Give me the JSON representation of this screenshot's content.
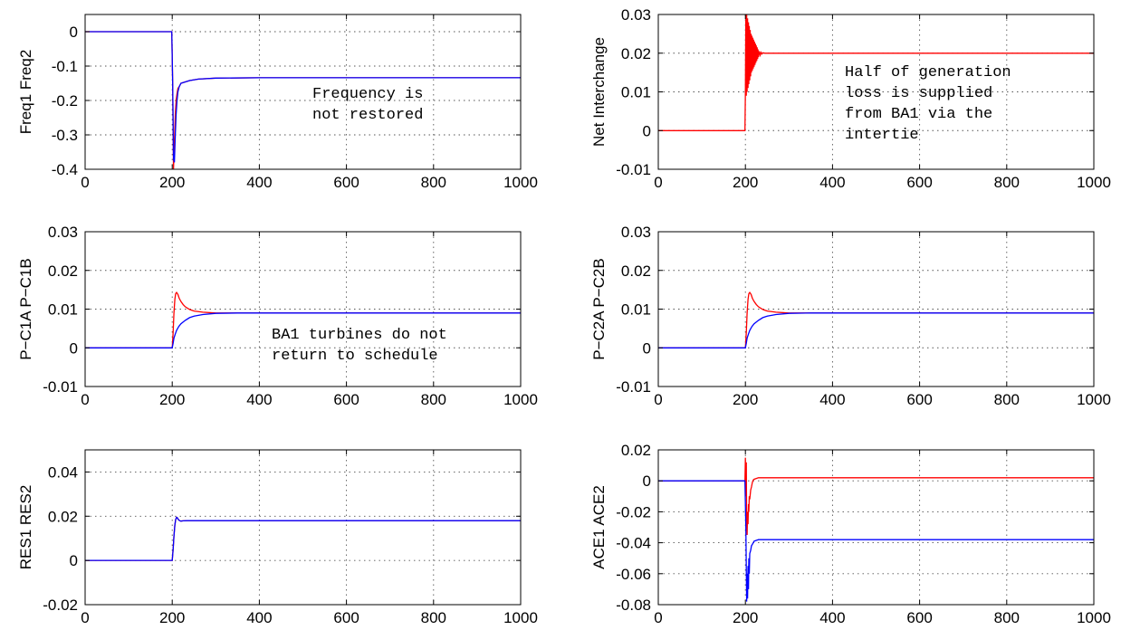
{
  "chart_data": [
    {
      "type": "line",
      "ylabel": "Freq1  Freq2",
      "xlim": [
        0,
        1000
      ],
      "ylim": [
        -0.4,
        0.05
      ],
      "xticks": [
        0,
        200,
        400,
        600,
        800,
        1000
      ],
      "yticks": [
        -0.4,
        -0.3,
        -0.2,
        -0.1,
        0
      ],
      "ytick_labels": [
        "-0.4",
        "-0.3",
        "-0.2",
        "-0.1",
        "0"
      ],
      "grid": true,
      "annotation": [
        "Frequency is",
        "not restored"
      ],
      "series": [
        {
          "color": "#ff0000",
          "x": [
            0,
            199,
            201,
            203,
            205,
            207,
            209,
            211,
            213,
            216,
            220,
            225,
            230,
            240,
            260,
            300,
            400,
            600,
            1000
          ],
          "y": [
            0,
            0,
            -0.15,
            -0.4,
            -0.32,
            -0.24,
            -0.2,
            -0.18,
            -0.165,
            -0.16,
            -0.15,
            -0.148,
            -0.146,
            -0.142,
            -0.138,
            -0.135,
            -0.134,
            -0.134,
            -0.134
          ]
        },
        {
          "color": "#0000ff",
          "x": [
            0,
            199,
            201,
            203,
            205,
            207,
            209,
            211,
            213,
            216,
            220,
            225,
            230,
            240,
            260,
            300,
            400,
            600,
            1000
          ],
          "y": [
            0,
            0,
            -0.15,
            -0.37,
            -0.38,
            -0.3,
            -0.24,
            -0.2,
            -0.175,
            -0.16,
            -0.15,
            -0.148,
            -0.146,
            -0.142,
            -0.138,
            -0.135,
            -0.134,
            -0.134,
            -0.134
          ]
        }
      ]
    },
    {
      "type": "line",
      "ylabel": "Net Interchange",
      "xlim": [
        0,
        1000
      ],
      "ylim": [
        -0.01,
        0.03
      ],
      "xticks": [
        0,
        200,
        400,
        600,
        800,
        1000
      ],
      "yticks": [
        -0.01,
        0,
        0.01,
        0.02,
        0.03
      ],
      "ytick_labels": [
        "-0.01",
        "0",
        "0.01",
        "0.02",
        "0.03"
      ],
      "grid": true,
      "annotation": [
        "Half of generation",
        "loss is supplied",
        "from BA1 via the",
        "intertie"
      ],
      "series": [
        {
          "color": "#ff0000",
          "x": [
            0,
            199,
            200,
            201,
            202,
            203,
            204,
            205,
            206,
            207,
            208,
            209,
            210,
            211,
            212,
            213,
            214,
            215,
            216,
            217,
            218,
            219,
            220,
            221,
            222,
            223,
            224,
            225,
            226,
            227,
            228,
            229,
            230,
            232,
            234,
            236,
            238,
            240,
            245,
            250,
            260,
            300,
            400,
            600,
            1000
          ],
          "y": [
            0,
            0,
            0.01,
            0.031,
            0.009,
            0.03,
            0.01,
            0.029,
            0.011,
            0.028,
            0.012,
            0.027,
            0.013,
            0.026,
            0.014,
            0.025,
            0.015,
            0.0245,
            0.0155,
            0.024,
            0.016,
            0.0235,
            0.0165,
            0.023,
            0.017,
            0.0225,
            0.0175,
            0.022,
            0.018,
            0.0215,
            0.0185,
            0.021,
            0.019,
            0.0205,
            0.0195,
            0.0202,
            0.0198,
            0.0201,
            0.02,
            0.02,
            0.02,
            0.02,
            0.02,
            0.02,
            0.02
          ]
        }
      ]
    },
    {
      "type": "line",
      "ylabel": "P−C1A  P−C1B",
      "xlim": [
        0,
        1000
      ],
      "ylim": [
        -0.01,
        0.03
      ],
      "xticks": [
        0,
        200,
        400,
        600,
        800,
        1000
      ],
      "yticks": [
        -0.01,
        0,
        0.01,
        0.02,
        0.03
      ],
      "ytick_labels": [
        "-0.01",
        "0",
        "0.01",
        "0.02",
        "0.03"
      ],
      "grid": true,
      "annotation": [
        "BA1 turbines do not",
        "return to schedule"
      ],
      "series": [
        {
          "color": "#ff0000",
          "x": [
            0,
            200,
            202,
            204,
            206,
            208,
            210,
            213,
            216,
            220,
            225,
            230,
            240,
            250,
            270,
            300,
            350,
            400,
            600,
            1000
          ],
          "y": [
            0,
            0,
            0.004,
            0.009,
            0.0125,
            0.014,
            0.0143,
            0.0138,
            0.0128,
            0.012,
            0.0112,
            0.0106,
            0.0099,
            0.0095,
            0.0092,
            0.009,
            0.009,
            0.009,
            0.009,
            0.009
          ]
        },
        {
          "color": "#0000ff",
          "x": [
            0,
            200,
            202,
            204,
            207,
            210,
            215,
            220,
            230,
            240,
            250,
            270,
            300,
            350,
            400,
            600,
            1000
          ],
          "y": [
            0,
            0,
            0.0012,
            0.0025,
            0.0036,
            0.0045,
            0.0055,
            0.0062,
            0.0071,
            0.0078,
            0.0082,
            0.0086,
            0.0089,
            0.009,
            0.009,
            0.009,
            0.009
          ]
        }
      ]
    },
    {
      "type": "line",
      "ylabel": "P−C2A  P−C2B",
      "xlim": [
        0,
        1000
      ],
      "ylim": [
        -0.01,
        0.03
      ],
      "xticks": [
        0,
        200,
        400,
        600,
        800,
        1000
      ],
      "yticks": [
        -0.01,
        0,
        0.01,
        0.02,
        0.03
      ],
      "ytick_labels": [
        "-0.01",
        "0",
        "0.01",
        "0.02",
        "0.03"
      ],
      "grid": true,
      "series": [
        {
          "color": "#ff0000",
          "x": [
            0,
            200,
            202,
            204,
            206,
            208,
            210,
            213,
            216,
            220,
            225,
            230,
            240,
            250,
            270,
            300,
            350,
            400,
            600,
            1000
          ],
          "y": [
            0,
            0,
            0.004,
            0.009,
            0.0125,
            0.014,
            0.0143,
            0.0138,
            0.0128,
            0.012,
            0.0112,
            0.0106,
            0.0099,
            0.0095,
            0.0092,
            0.009,
            0.009,
            0.009,
            0.009,
            0.009
          ]
        },
        {
          "color": "#0000ff",
          "x": [
            0,
            200,
            202,
            204,
            207,
            210,
            215,
            220,
            230,
            240,
            250,
            270,
            300,
            350,
            400,
            600,
            1000
          ],
          "y": [
            0,
            0,
            0.0012,
            0.0025,
            0.0036,
            0.0045,
            0.0055,
            0.0062,
            0.0071,
            0.0078,
            0.0082,
            0.0086,
            0.0089,
            0.009,
            0.009,
            0.009,
            0.009
          ]
        }
      ]
    },
    {
      "type": "line",
      "ylabel": "RES1  RES2",
      "xlim": [
        0,
        1000
      ],
      "ylim": [
        -0.02,
        0.05
      ],
      "xticks": [
        0,
        200,
        400,
        600,
        800,
        1000
      ],
      "yticks": [
        -0.02,
        0,
        0.02,
        0.04
      ],
      "ytick_labels": [
        "-0.02",
        "0",
        "0.02",
        "0.04"
      ],
      "grid": true,
      "series": [
        {
          "color": "#ff0000",
          "x": [
            0,
            200,
            202,
            204,
            206,
            208,
            210,
            212,
            214,
            217,
            220,
            225,
            235,
            260,
            300,
            600,
            1000
          ],
          "y": [
            0,
            0,
            0.005,
            0.011,
            0.016,
            0.0185,
            0.0195,
            0.0192,
            0.0185,
            0.018,
            0.0178,
            0.0179,
            0.018,
            0.018,
            0.018,
            0.018,
            0.018
          ]
        },
        {
          "color": "#0000ff",
          "x": [
            0,
            200,
            202,
            204,
            206,
            208,
            210,
            212,
            214,
            217,
            220,
            225,
            235,
            260,
            300,
            600,
            1000
          ],
          "y": [
            0,
            0,
            0.005,
            0.011,
            0.016,
            0.0185,
            0.0195,
            0.0192,
            0.0185,
            0.018,
            0.0178,
            0.0179,
            0.018,
            0.018,
            0.018,
            0.018,
            0.018
          ]
        }
      ]
    },
    {
      "type": "line",
      "ylabel": "ACE1  ACE2",
      "xlim": [
        0,
        1000
      ],
      "ylim": [
        -0.08,
        0.02
      ],
      "xticks": [
        0,
        200,
        400,
        600,
        800,
        1000
      ],
      "yticks": [
        -0.08,
        -0.06,
        -0.04,
        -0.02,
        0,
        0.02
      ],
      "ytick_labels": [
        "-0.08",
        "-0.06",
        "-0.04",
        "-0.02",
        "0",
        "0.02"
      ],
      "grid": true,
      "series": [
        {
          "color": "#ff0000",
          "x": [
            0,
            199,
            200,
            201,
            202,
            203,
            204,
            205,
            206,
            207,
            208,
            209,
            210,
            212,
            214,
            216,
            218,
            220,
            225,
            230,
            240,
            260,
            300,
            400,
            600,
            1000
          ],
          "y": [
            0,
            0,
            0.015,
            -0.01,
            0.012,
            -0.03,
            -0.035,
            -0.02,
            -0.028,
            -0.015,
            -0.02,
            -0.01,
            -0.012,
            -0.006,
            -0.004,
            -0.001,
            0.0005,
            0.001,
            0.0015,
            0.002,
            0.002,
            0.002,
            0.002,
            0.002,
            0.002,
            0.002
          ]
        },
        {
          "color": "#0000ff",
          "x": [
            0,
            199,
            201,
            203,
            204,
            205,
            206,
            207,
            208,
            209,
            210,
            212,
            214,
            216,
            218,
            220,
            225,
            230,
            240,
            260,
            300,
            400,
            600,
            1000
          ],
          "y": [
            0,
            0,
            -0.03,
            -0.078,
            -0.06,
            -0.076,
            -0.055,
            -0.07,
            -0.05,
            -0.06,
            -0.047,
            -0.045,
            -0.042,
            -0.041,
            -0.04,
            -0.039,
            -0.0385,
            -0.038,
            -0.038,
            -0.038,
            -0.038,
            -0.038,
            -0.038,
            -0.038
          ]
        }
      ]
    }
  ]
}
